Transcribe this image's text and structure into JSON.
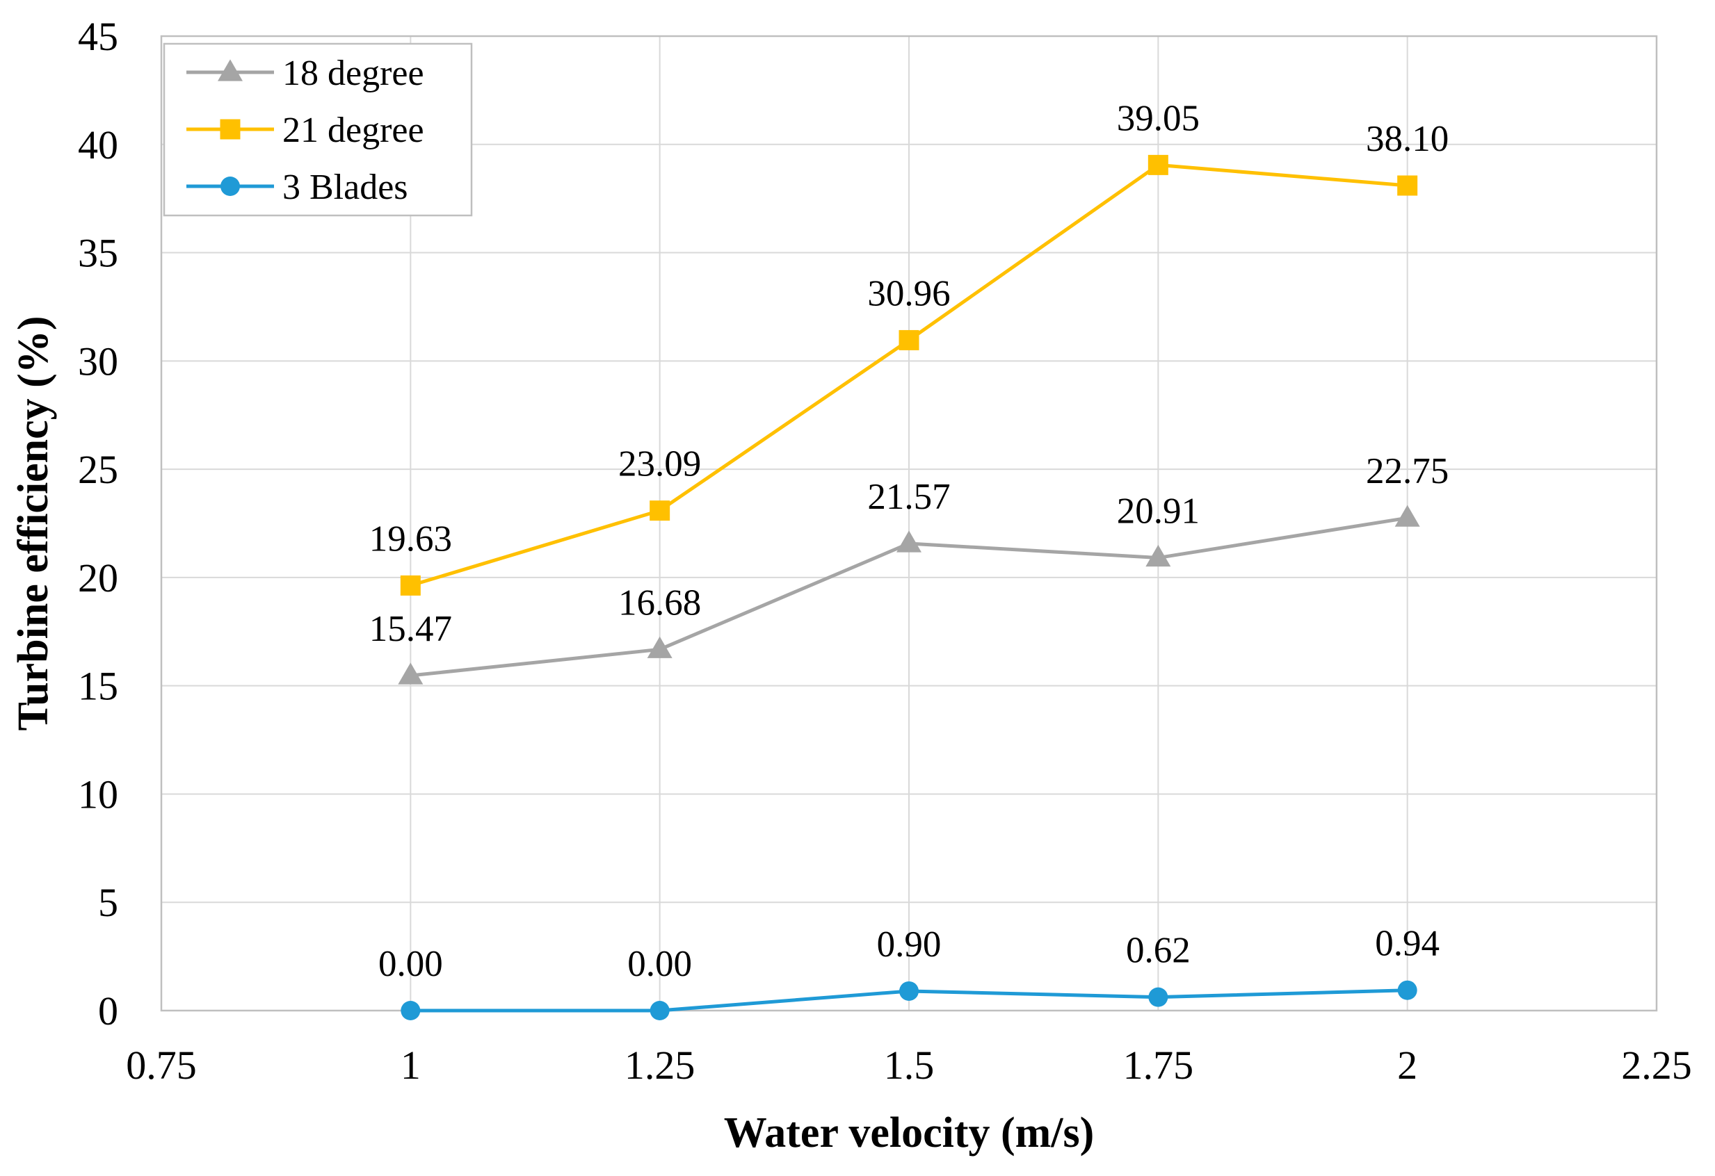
{
  "chart_data": {
    "type": "line",
    "title": "",
    "xlabel": "Water velocity (m/s)",
    "ylabel": "Turbine efficiency (%)",
    "xlim": [
      0.75,
      2.25
    ],
    "ylim": [
      0,
      45
    ],
    "x_ticks": [
      "0.75",
      "1",
      "1.25",
      "1.5",
      "1.75",
      "2",
      "2.25"
    ],
    "y_ticks": [
      "0",
      "5",
      "10",
      "15",
      "20",
      "25",
      "30",
      "35",
      "40",
      "45"
    ],
    "grid": true,
    "legend_position": "top-left",
    "x": [
      1,
      1.25,
      1.5,
      1.75,
      2
    ],
    "series": [
      {
        "name": "18 degree",
        "color": "#a5a5a5",
        "marker": "triangle",
        "values": [
          15.47,
          16.68,
          21.57,
          20.91,
          22.75
        ],
        "labels": [
          "15.47",
          "16.68",
          "21.57",
          "20.91",
          "22.75"
        ]
      },
      {
        "name": "21 degree",
        "color": "#ffc000",
        "marker": "square",
        "values": [
          19.63,
          23.09,
          30.96,
          39.05,
          38.1
        ],
        "labels": [
          "19.63",
          "23.09",
          "30.96",
          "39.05",
          "38.10"
        ]
      },
      {
        "name": "3 Blades",
        "color": "#1f9ad6",
        "marker": "circle",
        "values": [
          0,
          0,
          0.9,
          0.62,
          0.94
        ],
        "labels": [
          "0.00",
          "0.00",
          "0.90",
          "0.62",
          "0.94"
        ]
      }
    ]
  }
}
